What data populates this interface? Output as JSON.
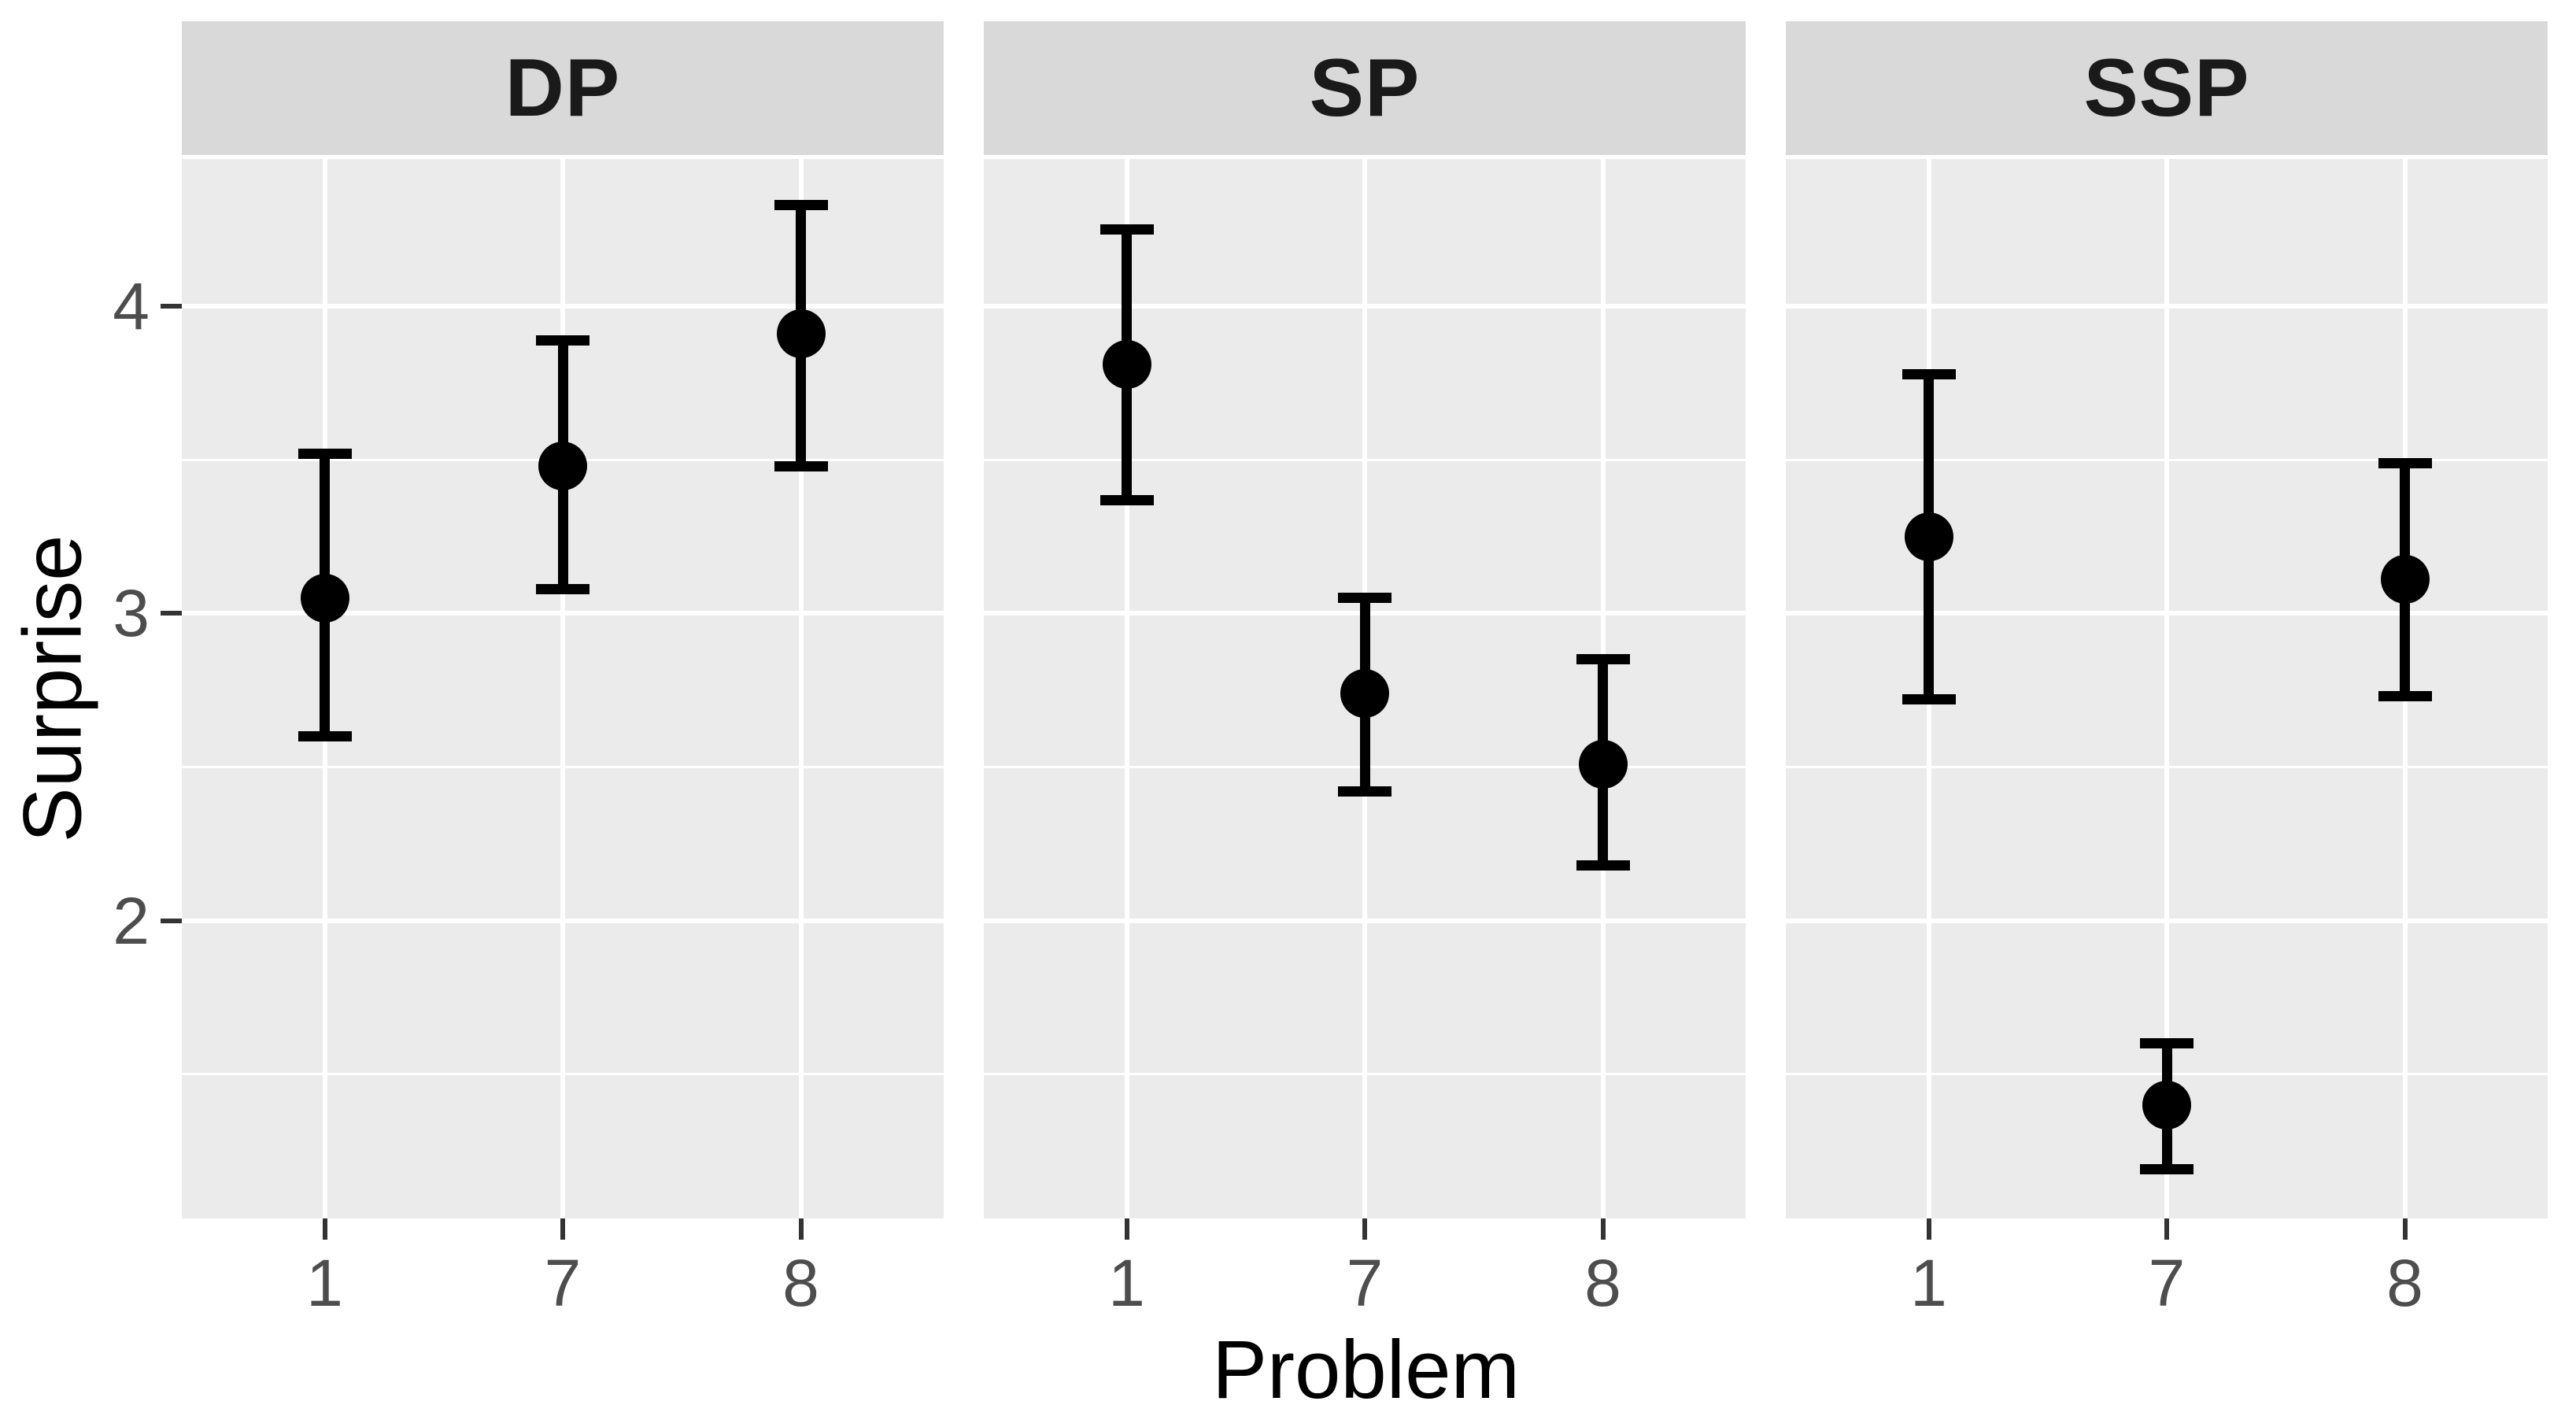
{
  "chart_data": {
    "type": "scatter",
    "subtype": "pointrange-facets",
    "title": "",
    "xlabel": "Problem",
    "ylabel": "Surprise",
    "categories": [
      "1",
      "7",
      "8"
    ],
    "facets": [
      {
        "label": "DP",
        "points": [
          {
            "category": "1",
            "mean": 3.05,
            "lower": 2.6,
            "upper": 3.52
          },
          {
            "category": "7",
            "mean": 3.48,
            "lower": 3.08,
            "upper": 3.89
          },
          {
            "category": "8",
            "mean": 3.91,
            "lower": 3.48,
            "upper": 4.33
          }
        ]
      },
      {
        "label": "SP",
        "points": [
          {
            "category": "1",
            "mean": 3.81,
            "lower": 3.37,
            "upper": 4.25
          },
          {
            "category": "7",
            "mean": 2.74,
            "lower": 2.42,
            "upper": 3.05
          },
          {
            "category": "8",
            "mean": 2.51,
            "lower": 2.18,
            "upper": 2.85
          }
        ]
      },
      {
        "label": "SSP",
        "points": [
          {
            "category": "1",
            "mean": 3.25,
            "lower": 2.72,
            "upper": 3.78
          },
          {
            "category": "7",
            "mean": 1.4,
            "lower": 1.19,
            "upper": 1.6
          },
          {
            "category": "8",
            "mean": 3.11,
            "lower": 2.73,
            "upper": 3.49
          }
        ]
      }
    ],
    "y_axis": {
      "ticks": [
        {
          "value": 4,
          "label": "4"
        },
        {
          "value": 3,
          "label": "3"
        },
        {
          "value": 2,
          "label": "2"
        }
      ],
      "minor_ticks": [
        3.5,
        2.5,
        1.5
      ],
      "ylim": [
        1.03,
        4.48
      ]
    },
    "legend": "none",
    "grid": "white major and minor horizontal lines, white vertical lines at each category",
    "colors": {
      "background": "#FFFFFF",
      "panel_bg": "#EBEBEB",
      "strip_bg": "#D9D9D9",
      "strip_text": "#1A1A1A",
      "grid": "#FFFFFF",
      "point": "#000000",
      "tick_label": "#4D4D4D",
      "tick_mark": "#333333",
      "axis_title": "#000000"
    }
  }
}
